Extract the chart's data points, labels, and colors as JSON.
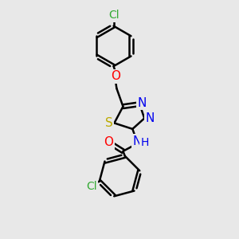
{
  "background_color": "#e8e8e8",
  "bond_color": "#000000",
  "bond_width": 1.8,
  "atom_colors": {
    "Cl": "#33aa33",
    "O": "#ff0000",
    "S": "#bbaa00",
    "N": "#0000ee",
    "H": "#0000ee"
  },
  "font_size": 10,
  "fig_width": 3.0,
  "fig_height": 3.0,
  "dpi": 100,
  "xlim": [
    0,
    10
  ],
  "ylim": [
    0,
    10
  ]
}
